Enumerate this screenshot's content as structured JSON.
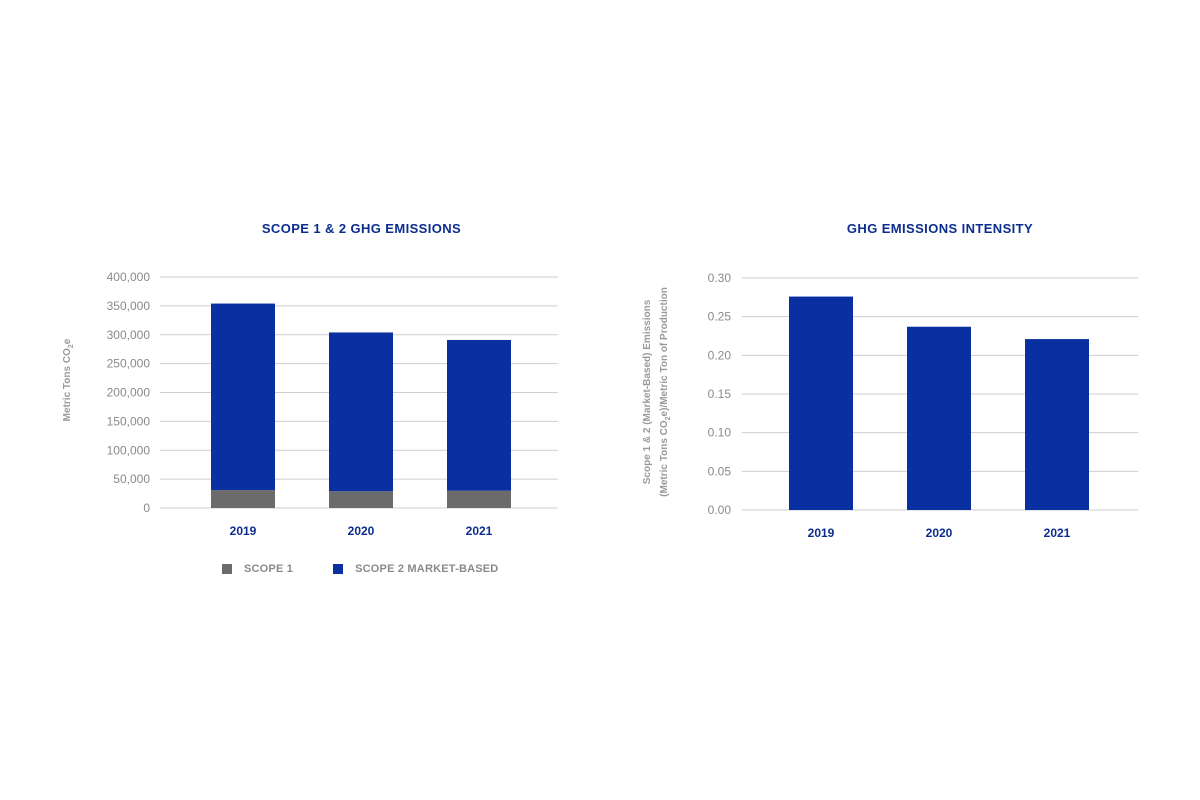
{
  "colors": {
    "scope1": "#6b6b6b",
    "scope2": "#0a2fa0",
    "bar": "#0a2fa0",
    "grid": "#cfcfcf",
    "title": "#0b2d8f"
  },
  "chart_data": [
    {
      "type": "bar",
      "stacked": true,
      "title": "SCOPE 1 & 2 GHG EMISSIONS",
      "ylabel": "Metric Tons CO2e",
      "ylim": [
        0,
        400000
      ],
      "yticks": [
        "400,000",
        "350,000",
        "300,000",
        "250,000",
        "200,000",
        "150,000",
        "100,000",
        "50,000",
        "0"
      ],
      "categories": [
        "2019",
        "2020",
        "2021"
      ],
      "series": [
        {
          "name": "SCOPE 1",
          "values": [
            31000,
            29000,
            30000
          ]
        },
        {
          "name": "SCOPE 2 MARKET-BASED",
          "values": [
            323000,
            275000,
            261000
          ]
        }
      ],
      "grid": true,
      "legend": "bottom"
    },
    {
      "type": "bar",
      "title": "GHG EMISSIONS INTENSITY",
      "ylabel_line1": "Scope 1 & 2 (Market-Based) Emissions",
      "ylabel_line2": "(Metric Tons CO2e)/Metric Ton of Production",
      "ylim": [
        0,
        0.3
      ],
      "yticks": [
        "0.30",
        "0.25",
        "0.20",
        "0.15",
        "0.10",
        "0.05",
        "0.00"
      ],
      "categories": [
        "2019",
        "2020",
        "2021"
      ],
      "values": [
        0.276,
        0.237,
        0.221
      ],
      "grid": true
    }
  ]
}
